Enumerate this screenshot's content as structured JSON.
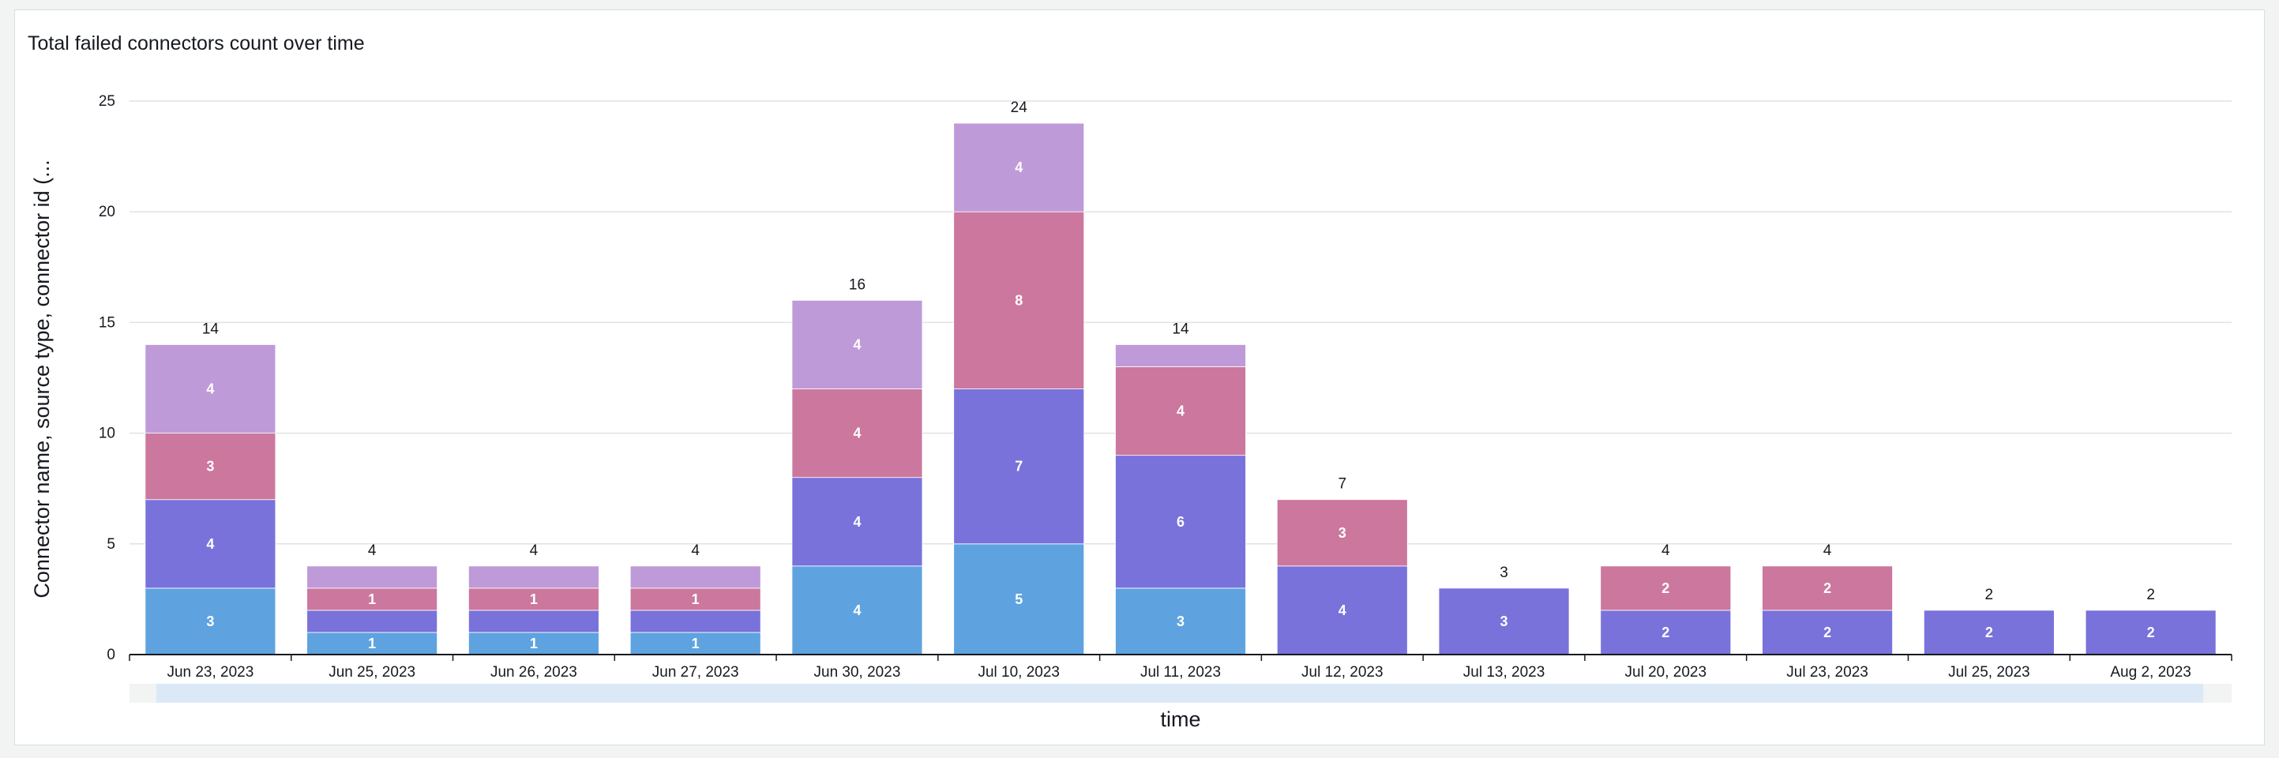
{
  "chart_data": {
    "type": "bar",
    "stacked": true,
    "title": "Total failed connectors count over time",
    "xlabel": "time",
    "ylabel": "Connector name, source type, connector id (...",
    "ylim": [
      0,
      25
    ],
    "yticks": [
      0,
      5,
      10,
      15,
      20,
      25
    ],
    "grid": true,
    "categories": [
      "Jun 23, 2023",
      "Jun 25, 2023",
      "Jun 26, 2023",
      "Jun 27, 2023",
      "Jun 30, 2023",
      "Jul 10, 2023",
      "Jul 11, 2023",
      "Jul 12, 2023",
      "Jul 13, 2023",
      "Jul 20, 2023",
      "Jul 23, 2023",
      "Jul 25, 2023",
      "Aug 2, 2023"
    ],
    "totals": [
      14,
      4,
      4,
      4,
      16,
      24,
      14,
      7,
      3,
      4,
      4,
      2,
      2
    ],
    "series": [
      {
        "color": "#5ea3e0",
        "values": [
          3,
          1,
          1,
          1,
          4,
          5,
          3,
          0,
          0,
          0,
          0,
          0,
          0
        ]
      },
      {
        "color": "#7972db",
        "values": [
          4,
          1,
          1,
          1,
          4,
          7,
          6,
          4,
          3,
          2,
          2,
          2,
          2
        ]
      },
      {
        "color": "#cc779e",
        "values": [
          3,
          1,
          1,
          1,
          4,
          8,
          4,
          3,
          0,
          2,
          2,
          0,
          0
        ]
      },
      {
        "color": "#bf9ad8",
        "values": [
          4,
          1,
          1,
          1,
          4,
          4,
          1,
          0,
          0,
          0,
          0,
          0,
          0
        ]
      }
    ],
    "segment_labels": [
      [
        "3",
        "1",
        "1",
        "1",
        "4",
        "5",
        "3",
        "",
        "",
        "",
        "",
        "",
        ""
      ],
      [
        "4",
        "",
        "",
        "",
        "4",
        "7",
        "6",
        "4",
        "3",
        "2",
        "2",
        "2",
        "2"
      ],
      [
        "3",
        "1",
        "1",
        "1",
        "4",
        "8",
        "4",
        "3",
        "",
        "2",
        "2",
        "",
        ""
      ],
      [
        "4",
        "",
        "",
        "",
        "4",
        "4",
        "",
        "",
        "",
        "",
        "",
        "",
        ""
      ]
    ]
  }
}
